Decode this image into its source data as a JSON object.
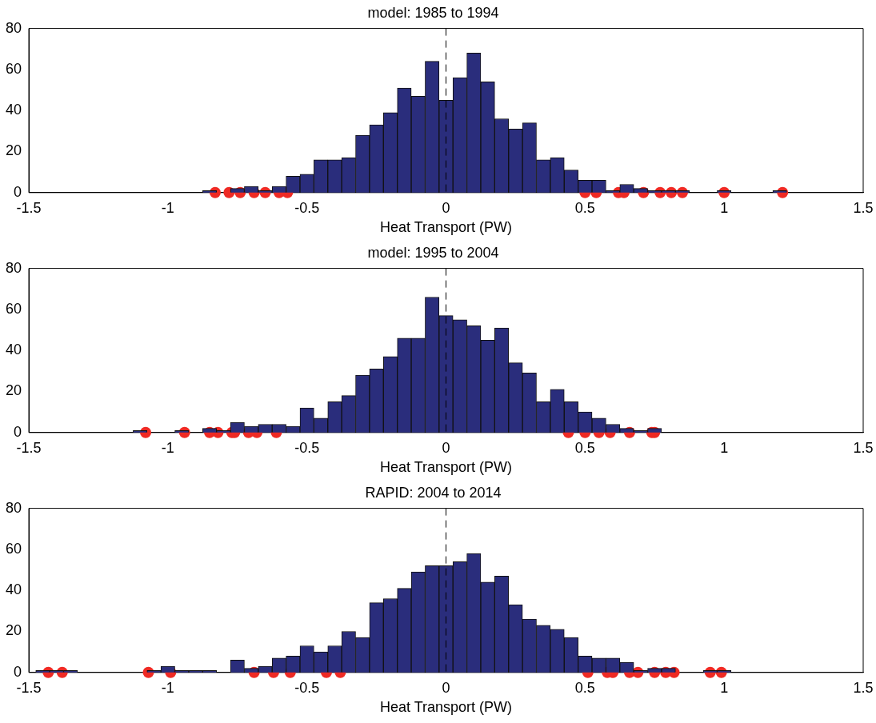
{
  "chart_data": [
    {
      "type": "histogram",
      "title": "model: 1985 to 1994",
      "xlabel": "Heat Transport (PW)",
      "color": "#2a2d7c",
      "bins": [
        -0.875,
        -0.825,
        -0.775,
        -0.725,
        -0.675,
        -0.625,
        -0.575,
        -0.525,
        -0.475,
        -0.425,
        -0.375,
        -0.325,
        -0.275,
        -0.225,
        -0.175,
        -0.125,
        -0.075,
        -0.025,
        0.025,
        0.075,
        0.125,
        0.175,
        0.225,
        0.275,
        0.325,
        0.375,
        0.425,
        0.475,
        0.525,
        0.575,
        0.625,
        0.675,
        0.725,
        0.775,
        0.825,
        0.875,
        0.925,
        0.975,
        1.025,
        1.075,
        1.125,
        1.175,
        1.225
      ],
      "values": [
        1,
        0,
        2,
        3,
        1,
        3,
        8,
        9,
        16,
        16,
        17,
        28,
        33,
        39,
        51,
        47,
        64,
        45,
        56,
        68,
        54,
        36,
        31,
        34,
        16,
        17,
        11,
        6,
        6,
        1,
        4,
        2,
        1,
        1,
        1,
        0,
        0,
        1,
        0,
        0,
        0,
        1
      ],
      "series": [
        {
          "type": "scatter",
          "color": "#ee2a24",
          "marker": "circle",
          "x": [
            -0.83,
            -0.78,
            -0.74,
            -0.69,
            -0.65,
            -0.6,
            -0.57,
            0.5,
            0.54,
            0.62,
            0.64,
            0.71,
            0.77,
            0.81,
            0.85,
            1.0,
            1.21
          ],
          "values": [
            0,
            0,
            0,
            0,
            0,
            0,
            0,
            0,
            0,
            0,
            0,
            0,
            0,
            0,
            0,
            0,
            0
          ]
        }
      ],
      "xlim": [
        -1.5,
        1.5
      ],
      "xticks": [
        -1.5,
        -1,
        -0.5,
        0,
        0.5,
        1,
        1.5
      ],
      "ylim": [
        0,
        80
      ],
      "yticks": [
        0,
        20,
        40,
        60,
        80
      ],
      "ref_lines": [
        {
          "axis": "x",
          "value": 0,
          "color": "#000000",
          "line_style": "dashed"
        }
      ]
    },
    {
      "type": "histogram",
      "title": "model: 1995 to 2004",
      "xlabel": "Heat Transport (PW)",
      "color": "#2a2d7c",
      "bins": [
        -1.125,
        -1.075,
        -1.025,
        -0.975,
        -0.925,
        -0.875,
        -0.825,
        -0.775,
        -0.725,
        -0.675,
        -0.625,
        -0.575,
        -0.525,
        -0.475,
        -0.425,
        -0.375,
        -0.325,
        -0.275,
        -0.225,
        -0.175,
        -0.125,
        -0.075,
        -0.025,
        0.025,
        0.075,
        0.125,
        0.175,
        0.225,
        0.275,
        0.325,
        0.375,
        0.425,
        0.475,
        0.525,
        0.575,
        0.625,
        0.675,
        0.725,
        0.775
      ],
      "values": [
        1,
        0,
        0,
        1,
        0,
        2,
        1,
        5,
        3,
        4,
        4,
        3,
        12,
        7,
        15,
        18,
        28,
        31,
        37,
        46,
        46,
        66,
        57,
        55,
        52,
        45,
        51,
        34,
        29,
        15,
        21,
        15,
        10,
        7,
        4,
        2,
        1,
        2
      ],
      "series": [
        {
          "type": "scatter",
          "color": "#ee2a24",
          "marker": "circle",
          "x": [
            -1.08,
            -0.94,
            -0.85,
            -0.82,
            -0.77,
            -0.76,
            -0.71,
            -0.68,
            -0.61,
            0.44,
            0.5,
            0.55,
            0.59,
            0.66,
            0.74,
            0.75
          ],
          "values": [
            0,
            0,
            0,
            0,
            0,
            0,
            0,
            0,
            0,
            0,
            0,
            0,
            0,
            0,
            0,
            0
          ]
        }
      ],
      "xlim": [
        -1.5,
        1.5
      ],
      "xticks": [
        -1.5,
        -1,
        -0.5,
        0,
        0.5,
        1,
        1.5
      ],
      "ylim": [
        0,
        80
      ],
      "yticks": [
        0,
        20,
        40,
        60,
        80
      ],
      "ref_lines": [
        {
          "axis": "x",
          "value": 0,
          "color": "#000000",
          "line_style": "dashed"
        }
      ]
    },
    {
      "type": "histogram",
      "title": "RAPID: 2004 to 2014",
      "xlabel": "Heat Transport (PW)",
      "color": "#2a2d7c",
      "bins": [
        -1.475,
        -1.425,
        -1.375,
        -1.325,
        -1.275,
        -1.225,
        -1.175,
        -1.125,
        -1.075,
        -1.025,
        -0.975,
        -0.925,
        -0.875,
        -0.825,
        -0.775,
        -0.725,
        -0.675,
        -0.625,
        -0.575,
        -0.525,
        -0.475,
        -0.425,
        -0.375,
        -0.325,
        -0.275,
        -0.225,
        -0.175,
        -0.125,
        -0.075,
        -0.025,
        0.025,
        0.075,
        0.125,
        0.175,
        0.225,
        0.275,
        0.325,
        0.375,
        0.425,
        0.475,
        0.525,
        0.575,
        0.625,
        0.675,
        0.725,
        0.775,
        0.825,
        0.875,
        0.925,
        0.975,
        1.025
      ],
      "values": [
        1,
        1,
        1,
        0,
        0,
        0,
        0,
        0,
        1,
        3,
        1,
        1,
        1,
        0,
        6,
        2,
        3,
        7,
        8,
        13,
        10,
        13,
        20,
        17,
        34,
        36,
        41,
        49,
        52,
        52,
        54,
        58,
        44,
        47,
        33,
        26,
        23,
        21,
        17,
        8,
        7,
        7,
        5,
        1,
        2,
        2,
        0,
        0,
        1,
        1
      ],
      "series": [
        {
          "type": "scatter",
          "color": "#ee2a24",
          "marker": "circle",
          "x": [
            -1.43,
            -1.38,
            -1.07,
            -0.99,
            -0.69,
            -0.62,
            -0.56,
            -0.43,
            -0.38,
            0.51,
            0.58,
            0.6,
            0.66,
            0.69,
            0.75,
            0.79,
            0.82,
            0.95,
            0.99
          ],
          "values": [
            0,
            0,
            0,
            0,
            0,
            0,
            0,
            0,
            0,
            0,
            0,
            0,
            0,
            0,
            0,
            0,
            0,
            0,
            0
          ]
        }
      ],
      "xlim": [
        -1.5,
        1.5
      ],
      "xticks": [
        -1.5,
        -1,
        -0.5,
        0,
        0.5,
        1,
        1.5
      ],
      "ylim": [
        0,
        80
      ],
      "yticks": [
        0,
        20,
        40,
        60,
        80
      ],
      "ref_lines": [
        {
          "axis": "x",
          "value": 0,
          "color": "#000000",
          "line_style": "dashed"
        }
      ]
    }
  ]
}
